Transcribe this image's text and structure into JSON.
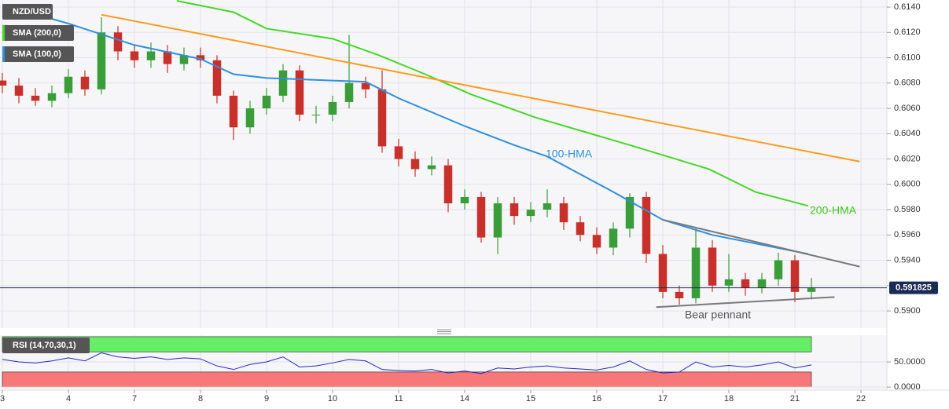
{
  "chart_data": [
    {
      "type": "candlestick",
      "name": "NZD/USD",
      "colors": {
        "up": "#3a9d3a",
        "down": "#c8302c"
      },
      "x": [
        0,
        0.25,
        0.5,
        0.75,
        1,
        1.25,
        1.5,
        1.75,
        2,
        2.25,
        2.5,
        2.75,
        3,
        3.25,
        3.5,
        3.75,
        4,
        4.25,
        4.5,
        4.75,
        5,
        5.25,
        5.5,
        5.75,
        6,
        6.25,
        6.5,
        6.75,
        7,
        7.25,
        7.5,
        7.75,
        8,
        8.25,
        8.5,
        8.75,
        9,
        9.25,
        9.5,
        9.75,
        10,
        10.25,
        10.5,
        10.75,
        11,
        11.25,
        11.5,
        11.75,
        12,
        12.25
      ],
      "open": [
        0.6082,
        0.6078,
        0.607,
        0.6066,
        0.6072,
        0.6085,
        0.6075,
        0.612,
        0.6105,
        0.6098,
        0.6105,
        0.6095,
        0.6102,
        0.6098,
        0.607,
        0.6045,
        0.606,
        0.607,
        0.609,
        0.6055,
        0.6055,
        0.6065,
        0.608,
        0.6075,
        0.603,
        0.602,
        0.6012,
        0.6015,
        0.5985,
        0.599,
        0.5958,
        0.5985,
        0.5975,
        0.598,
        0.5985,
        0.597,
        0.596,
        0.595,
        0.5965,
        0.599,
        0.5945,
        0.5915,
        0.591,
        0.595,
        0.592,
        0.5925,
        0.5918,
        0.5925,
        0.594,
        0.5915
      ],
      "high": [
        0.6088,
        0.6084,
        0.6076,
        0.6078,
        0.6091,
        0.609,
        0.6132,
        0.6125,
        0.611,
        0.6112,
        0.611,
        0.6108,
        0.6108,
        0.6102,
        0.6074,
        0.6066,
        0.6076,
        0.6095,
        0.6094,
        0.6062,
        0.607,
        0.6118,
        0.6085,
        0.609,
        0.6036,
        0.6026,
        0.6022,
        0.602,
        0.5996,
        0.5994,
        0.599,
        0.599,
        0.5986,
        0.5996,
        0.599,
        0.5975,
        0.5966,
        0.597,
        0.5993,
        0.5994,
        0.5952,
        0.592,
        0.5965,
        0.5956,
        0.5945,
        0.593,
        0.593,
        0.5946,
        0.5944,
        0.5926
      ],
      "low": [
        0.6072,
        0.6064,
        0.6062,
        0.6061,
        0.6068,
        0.607,
        0.6071,
        0.6098,
        0.6092,
        0.6092,
        0.6088,
        0.609,
        0.6092,
        0.6064,
        0.6035,
        0.604,
        0.6055,
        0.6065,
        0.605,
        0.6048,
        0.605,
        0.606,
        0.6068,
        0.6025,
        0.6014,
        0.6006,
        0.6007,
        0.5978,
        0.598,
        0.5954,
        0.5945,
        0.5968,
        0.597,
        0.5974,
        0.5964,
        0.5955,
        0.5945,
        0.5944,
        0.5958,
        0.5938,
        0.591,
        0.5905,
        0.5906,
        0.5915,
        0.5915,
        0.5912,
        0.5914,
        0.592,
        0.5907,
        0.5909
      ],
      "close": [
        0.6078,
        0.607,
        0.6066,
        0.6072,
        0.6085,
        0.6075,
        0.612,
        0.6105,
        0.6098,
        0.6105,
        0.6095,
        0.6102,
        0.6098,
        0.607,
        0.6045,
        0.606,
        0.607,
        0.609,
        0.6055,
        0.6055,
        0.6065,
        0.608,
        0.6075,
        0.603,
        0.602,
        0.6012,
        0.6015,
        0.5985,
        0.599,
        0.5958,
        0.5985,
        0.5975,
        0.598,
        0.5985,
        0.597,
        0.596,
        0.595,
        0.5965,
        0.599,
        0.5945,
        0.5915,
        0.591,
        0.595,
        0.592,
        0.5925,
        0.5918,
        0.5925,
        0.594,
        0.5915,
        0.5918
      ],
      "lines": [
        {
          "name": "SMA (200,0)",
          "color": "#46d626",
          "x": [
            2.64,
            3.5,
            4,
            5,
            5.7,
            6.4,
            7.1,
            8.06,
            9.5,
            10.7,
            11.4,
            12.2
          ],
          "values": [
            0.6145,
            0.6136,
            0.6123,
            0.6115,
            0.6102,
            0.6087,
            0.6071,
            0.6053,
            0.6031,
            0.6012,
            0.5994,
            0.5983
          ]
        },
        {
          "name": "SMA (100,0)",
          "color": "#2f8fdd",
          "x": [
            0,
            1,
            2,
            3,
            3.5,
            4,
            5,
            5.5,
            6,
            7,
            7.75,
            8.25,
            9.25,
            10,
            10.75,
            12.2
          ],
          "values": [
            0.6142,
            0.6127,
            0.611,
            0.6099,
            0.6087,
            0.6084,
            0.6082,
            0.6081,
            0.6068,
            0.6046,
            0.6031,
            0.6022,
            0.5994,
            0.5972,
            0.596,
            0.5945
          ]
        }
      ],
      "trendlines": [
        {
          "color": "#ff9a1f",
          "x": [
            1.5,
            12.98
          ],
          "values": [
            0.6134,
            0.6018
          ]
        },
        {
          "color": "#7a7a7a",
          "x": [
            10.0,
            12.98
          ],
          "values": [
            0.5972,
            0.5935
          ]
        },
        {
          "color": "#7a7a7a",
          "x": [
            9.9,
            12.6
          ],
          "values": [
            0.5903,
            0.5911
          ]
        }
      ],
      "annotations": [
        {
          "text": "100-HMA",
          "color": "#2f8fdd"
        },
        {
          "text": "200-HMA",
          "color": "#3cc51c"
        },
        {
          "text": "Bear pennant",
          "color": "#555555"
        }
      ],
      "last_price": 0.591825,
      "xlim": [
        0,
        13.4
      ],
      "ylim": [
        0.58864,
        0.61456
      ],
      "yticks": [
        {
          "value": 0.59,
          "label": "0.5900"
        },
        {
          "value": 0.592,
          "label": "0.5920"
        },
        {
          "value": 0.594,
          "label": "0.5940"
        },
        {
          "value": 0.596,
          "label": "0.5960"
        },
        {
          "value": 0.598,
          "label": "0.5980"
        },
        {
          "value": 0.6,
          "label": "0.6000"
        },
        {
          "value": 0.602,
          "label": "0.6020"
        },
        {
          "value": 0.604,
          "label": "0.6040"
        },
        {
          "value": 0.606,
          "label": "0.6060"
        },
        {
          "value": 0.608,
          "label": "0.6080"
        },
        {
          "value": 0.61,
          "label": "0.6100"
        },
        {
          "value": 0.612,
          "label": "0.6120"
        },
        {
          "value": 0.614,
          "label": "0.6140"
        }
      ],
      "grid": true
    },
    {
      "type": "line",
      "name": "RSI (14,70,30,1)",
      "color": "#2626c8",
      "x": [
        0,
        0.25,
        0.5,
        0.75,
        1,
        1.25,
        1.5,
        1.75,
        2,
        2.25,
        2.5,
        2.75,
        3,
        3.25,
        3.5,
        3.75,
        4,
        4.25,
        4.5,
        4.75,
        5,
        5.25,
        5.5,
        5.75,
        6,
        6.25,
        6.5,
        6.75,
        7,
        7.25,
        7.5,
        7.75,
        8,
        8.25,
        8.5,
        8.75,
        9,
        9.25,
        9.5,
        9.75,
        10,
        10.25,
        10.5,
        10.75,
        11,
        11.25,
        11.5,
        11.75,
        12,
        12.25
      ],
      "values": [
        55,
        50,
        48,
        52,
        58,
        52,
        68,
        60,
        57,
        60,
        55,
        58,
        56,
        42,
        35,
        45,
        50,
        60,
        40,
        42,
        48,
        55,
        52,
        35,
        33,
        32,
        35,
        28,
        32,
        27,
        38,
        36,
        40,
        42,
        38,
        36,
        34,
        40,
        52,
        35,
        28,
        30,
        50,
        40,
        43,
        40,
        44,
        50,
        38,
        44
      ],
      "bands": [
        {
          "from": 70,
          "to": 100,
          "color": "#66ee66"
        },
        {
          "from": 0,
          "to": 30,
          "color": "#f77878"
        }
      ],
      "xlim": [
        0,
        13.4
      ],
      "ylim": [
        -6,
        103
      ],
      "yticks": [
        {
          "value": 0,
          "label": "0.0000"
        },
        {
          "value": 50,
          "label": "50.0000"
        }
      ],
      "xticks": [
        {
          "value": 0,
          "label": "3"
        },
        {
          "value": 1,
          "label": "4"
        },
        {
          "value": 2,
          "label": "7"
        },
        {
          "value": 3,
          "label": "8"
        },
        {
          "value": 4,
          "label": "9"
        },
        {
          "value": 5,
          "label": "10"
        },
        {
          "value": 6,
          "label": "11"
        },
        {
          "value": 7,
          "label": "14"
        },
        {
          "value": 8,
          "label": "15"
        },
        {
          "value": 9,
          "label": "16"
        },
        {
          "value": 10,
          "label": "17"
        },
        {
          "value": 11,
          "label": "18"
        },
        {
          "value": 12,
          "label": "21"
        },
        {
          "value": 13,
          "label": "22"
        }
      ],
      "grid": true
    }
  ]
}
